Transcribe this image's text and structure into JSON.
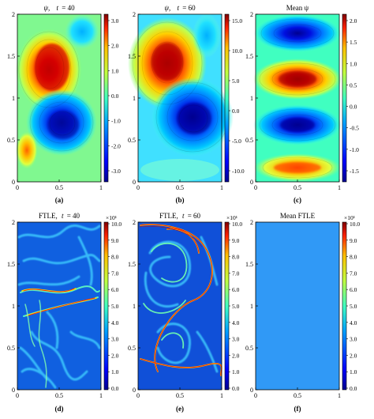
{
  "figure": {
    "panels": [
      {
        "id": "a",
        "title_prefix": "ψ,",
        "title_var": "t",
        "title_eq": "= 40",
        "caption": "(a)",
        "colorbar": {
          "ticks": [
            "3.0",
            "2.0",
            "1.0",
            "0.0",
            "-1.0",
            "-2.0",
            "-3.0"
          ],
          "exponent": ""
        }
      },
      {
        "id": "b",
        "title_prefix": "ψ,",
        "title_var": "t",
        "title_eq": "= 60",
        "caption": "(b)",
        "colorbar": {
          "ticks": [
            "15.0",
            "10.0",
            "5.0",
            "0.0",
            "-5.0",
            "-10.0"
          ],
          "exponent": ""
        }
      },
      {
        "id": "c",
        "title": "Mean ψ",
        "caption": "(c)",
        "colorbar": {
          "ticks": [
            "2.0",
            "1.5",
            "1.0",
            "0.5",
            "0.0",
            "-0.5",
            "-1.0",
            "-1.5"
          ],
          "exponent": ""
        }
      },
      {
        "id": "d",
        "title_prefix": "FTLE,",
        "title_var": "t",
        "title_eq": "= 40",
        "caption": "(d)",
        "colorbar": {
          "ticks": [
            "10.0",
            "9.0",
            "8.0",
            "7.0",
            "6.0",
            "5.0",
            "4.0",
            "3.0",
            "2.0",
            "1.0",
            "0.0"
          ],
          "exponent": "×10¹"
        }
      },
      {
        "id": "e",
        "title_prefix": "FTLE,",
        "title_var": "t",
        "title_eq": "= 60",
        "caption": "(e)",
        "colorbar": {
          "ticks": [
            "10.0",
            "9.0",
            "8.0",
            "7.0",
            "6.0",
            "5.0",
            "4.0",
            "3.0",
            "2.0",
            "1.0",
            "0.0"
          ],
          "exponent": "×10¹"
        }
      },
      {
        "id": "f",
        "title": "Mean FTLE",
        "caption": "(f)",
        "colorbar": {
          "ticks": [
            "10.0",
            "9.0",
            "8.0",
            "7.0",
            "6.0",
            "5.0",
            "4.0",
            "3.0",
            "2.0",
            "1.0",
            "0.0"
          ],
          "exponent": "×10¹"
        }
      }
    ],
    "x_ticks": [
      "0",
      "0.5",
      "1"
    ],
    "y_ticks": [
      "0",
      "0.5",
      "1",
      "1.5",
      "2"
    ]
  },
  "colormap": {
    "name": "jet",
    "stops": [
      "#00008f",
      "#0000ff",
      "#00a0ff",
      "#40ffc0",
      "#c0ff40",
      "#ffc000",
      "#ff2000",
      "#800000"
    ]
  }
}
